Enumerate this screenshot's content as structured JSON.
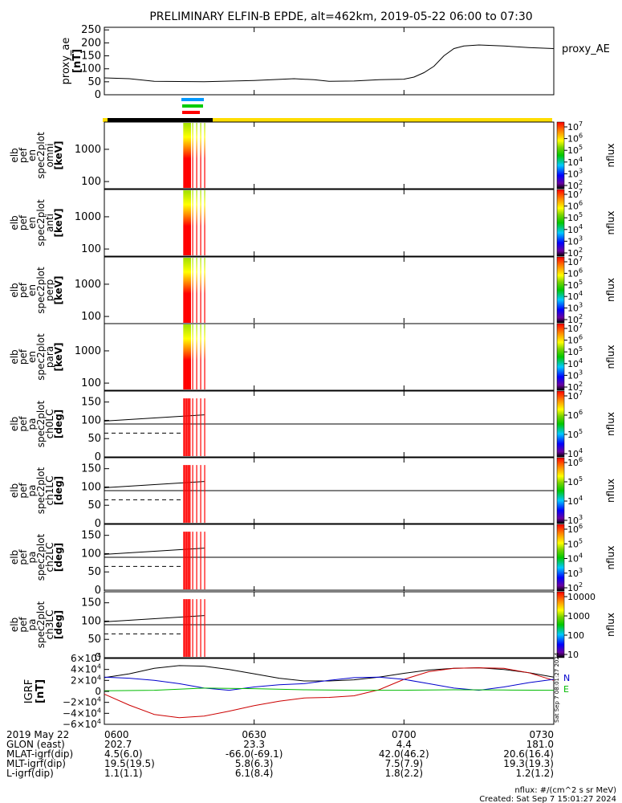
{
  "title": "PRELIMINARY ELFIN-B EPDE, alt=462km, 2019-05-22 06:00 to 07:30",
  "ae_panel": {
    "ylabel": [
      "proxy_ae",
      "[nT]"
    ],
    "legend": "proxy_AE",
    "yticks": [
      "250",
      "200",
      "150",
      "100",
      "50",
      "0"
    ]
  },
  "spec_panels": [
    {
      "ylabel": [
        "elb",
        "pef",
        "en",
        "spec2plot",
        "omni",
        "[keV]"
      ],
      "yticks": [
        "1000",
        "100"
      ],
      "cb_label": "nflux"
    },
    {
      "ylabel": [
        "elb",
        "pef",
        "en",
        "spec2plot",
        "anti",
        "[keV]"
      ],
      "yticks": [
        "1000",
        "100"
      ],
      "cb_label": "nflux"
    },
    {
      "ylabel": [
        "elb",
        "pef",
        "en",
        "spec2plot",
        "perp",
        "[keV]"
      ],
      "yticks": [
        "1000",
        "100"
      ],
      "cb_label": "nflux"
    },
    {
      "ylabel": [
        "elb",
        "pef",
        "en",
        "spec2plot",
        "para",
        "[keV]"
      ],
      "yticks": [
        "1000",
        "100"
      ],
      "cb_label": "nflux"
    }
  ],
  "pa_panels": [
    {
      "ylabel": [
        "elb",
        "pef",
        "pa",
        "spec2plot",
        "ch0LC",
        "[deg]"
      ],
      "yticks": [
        "150",
        "100",
        "50",
        "0"
      ],
      "cb_label": "nflux"
    },
    {
      "ylabel": [
        "elb",
        "pef",
        "pa",
        "spec2plot",
        "ch1LC",
        "[deg]"
      ],
      "yticks": [
        "150",
        "100",
        "50",
        "0"
      ],
      "cb_label": "nflux"
    },
    {
      "ylabel": [
        "elb",
        "pef",
        "pa",
        "spec2plot",
        "ch2LC",
        "[deg]"
      ],
      "yticks": [
        "150",
        "100",
        "50",
        "0"
      ],
      "cb_label": "nflux"
    },
    {
      "ylabel": [
        "elb",
        "pef",
        "pa",
        "spec2plot",
        "ch3LC",
        "[deg]"
      ],
      "yticks": [
        "150",
        "100",
        "50",
        "0"
      ],
      "cb_label": "nflux"
    }
  ],
  "colorbar_ticks": {
    "spec": [
      "10^7",
      "10^6",
      "10^5",
      "10^4",
      "10^3",
      "10^2"
    ],
    "pa0": [
      "10^7",
      "10^6",
      "10^5",
      "10^4"
    ],
    "pa1": [
      "10^6",
      "10^5",
      "10^4",
      "10^3"
    ],
    "pa2": [
      "10^6",
      "10^5",
      "10^4",
      "10^3",
      "10^2"
    ],
    "pa3": [
      "10000",
      "1000",
      "100",
      "10"
    ]
  },
  "igrf_panel": {
    "ylabel": [
      "IGRF",
      "[nT]"
    ],
    "yticks": [
      "6×10^4",
      "4×10^4",
      "2×10^4",
      "0",
      "−2×10^4",
      "−4×10^4",
      "−6×10^4"
    ],
    "side_stamp": "Sat Sep  7 08:01:27 2024",
    "legend": [
      "N",
      "E"
    ]
  },
  "footer": {
    "rows": [
      {
        "label": "2019 May 22",
        "values": [
          "0600",
          "0630",
          "0700",
          "0730"
        ]
      },
      {
        "label": "GLON (east)",
        "values": [
          "202.7",
          "23.3",
          "4.4",
          "181.0"
        ]
      },
      {
        "label": "MLAT-igrf(dip)",
        "values": [
          "4.5(6.0)",
          "-66.0(-69.1)",
          "42.0(46.2)",
          "20.6(16.4)"
        ]
      },
      {
        "label": "MLT-igrf(dip)",
        "values": [
          "19.5(19.5)",
          "5.8(6.3)",
          "7.5(7.9)",
          "19.3(19.3)"
        ]
      },
      {
        "label": "L-igrf(dip)",
        "values": [
          "1.1(1.1)",
          "6.1(8.4)",
          "1.8(2.2)",
          "1.2(1.2)"
        ]
      }
    ],
    "units": "nflux: #/(cm^2 s sr MeV)",
    "created": "Created: Sat Sep  7 15:01:27 2024"
  },
  "chart_data": {
    "type": "line",
    "x_range": [
      "2019-05-22 06:00",
      "2019-05-22 07:30"
    ],
    "x_ticks": [
      "0600",
      "0630",
      "0700",
      "0730"
    ],
    "proxy_ae": {
      "ylim": [
        0,
        260
      ],
      "x_min": [
        0,
        5,
        10,
        20,
        30,
        38,
        42,
        45,
        50,
        55,
        60,
        62,
        64,
        66,
        68,
        70,
        72,
        75,
        80,
        85,
        90
      ],
      "values": [
        65,
        62,
        52,
        50,
        55,
        62,
        58,
        52,
        53,
        58,
        60,
        68,
        85,
        110,
        150,
        178,
        188,
        192,
        188,
        182,
        178
      ]
    },
    "energy_spectrogram": {
      "yscale": "log",
      "ylim": [
        60,
        7000
      ],
      "burst_minutes": [
        15.8,
        16.1,
        16.4,
        16.7,
        17.0,
        17.6,
        18.4,
        19.2,
        20.0
      ],
      "color_scale": "log",
      "color_range": [
        "1e2",
        "1e7"
      ]
    },
    "pitch_angle": {
      "ylim": [
        0,
        180
      ],
      "solid_line": {
        "x_min": [
          0,
          20
        ],
        "values": [
          98,
          115
        ]
      },
      "horizontal_line": 90,
      "dashed_line": 65,
      "burst_minutes": [
        15.8,
        16.1,
        16.4,
        16.7,
        17.0,
        17.6,
        18.4,
        19.2,
        20.0
      ]
    },
    "igrf": {
      "ylim": [
        -60000,
        60000
      ],
      "series": [
        {
          "color": "#000000",
          "x_min": [
            0,
            5,
            10,
            15,
            20,
            25,
            30,
            35,
            40,
            45,
            50,
            55,
            60,
            65,
            70,
            75,
            80,
            85,
            90
          ],
          "values": [
            25000,
            32000,
            42000,
            47000,
            46000,
            40000,
            32000,
            24000,
            19000,
            19000,
            21000,
            26000,
            33000,
            39000,
            42000,
            43000,
            40000,
            34000,
            26000
          ]
        },
        {
          "color": "#cc0000",
          "x_min": [
            0,
            5,
            10,
            15,
            20,
            25,
            30,
            35,
            40,
            45,
            50,
            55,
            60,
            65,
            70,
            75,
            80,
            85,
            90
          ],
          "values": [
            -5000,
            -25000,
            -42000,
            -48000,
            -45000,
            -36000,
            -26000,
            -18000,
            -12000,
            -11000,
            -8000,
            3000,
            22000,
            36000,
            42000,
            43000,
            42000,
            34000,
            20000
          ]
        },
        {
          "color": "#0000cc",
          "x_min": [
            0,
            5,
            10,
            15,
            20,
            25,
            30,
            35,
            40,
            45,
            50,
            55,
            60,
            65,
            70,
            75,
            80,
            85,
            90
          ],
          "values": [
            26000,
            24000,
            20000,
            14000,
            6000,
            2000,
            8000,
            12000,
            14000,
            20000,
            25000,
            26000,
            22000,
            14000,
            6000,
            2000,
            8000,
            16000,
            22000
          ]
        },
        {
          "color": "#00bb00",
          "x_min": [
            0,
            10,
            20,
            30,
            40,
            50,
            60,
            70,
            80,
            90
          ],
          "values": [
            1000,
            2000,
            6000,
            5000,
            3000,
            2000,
            2000,
            3000,
            2500,
            2000
          ]
        }
      ]
    }
  }
}
